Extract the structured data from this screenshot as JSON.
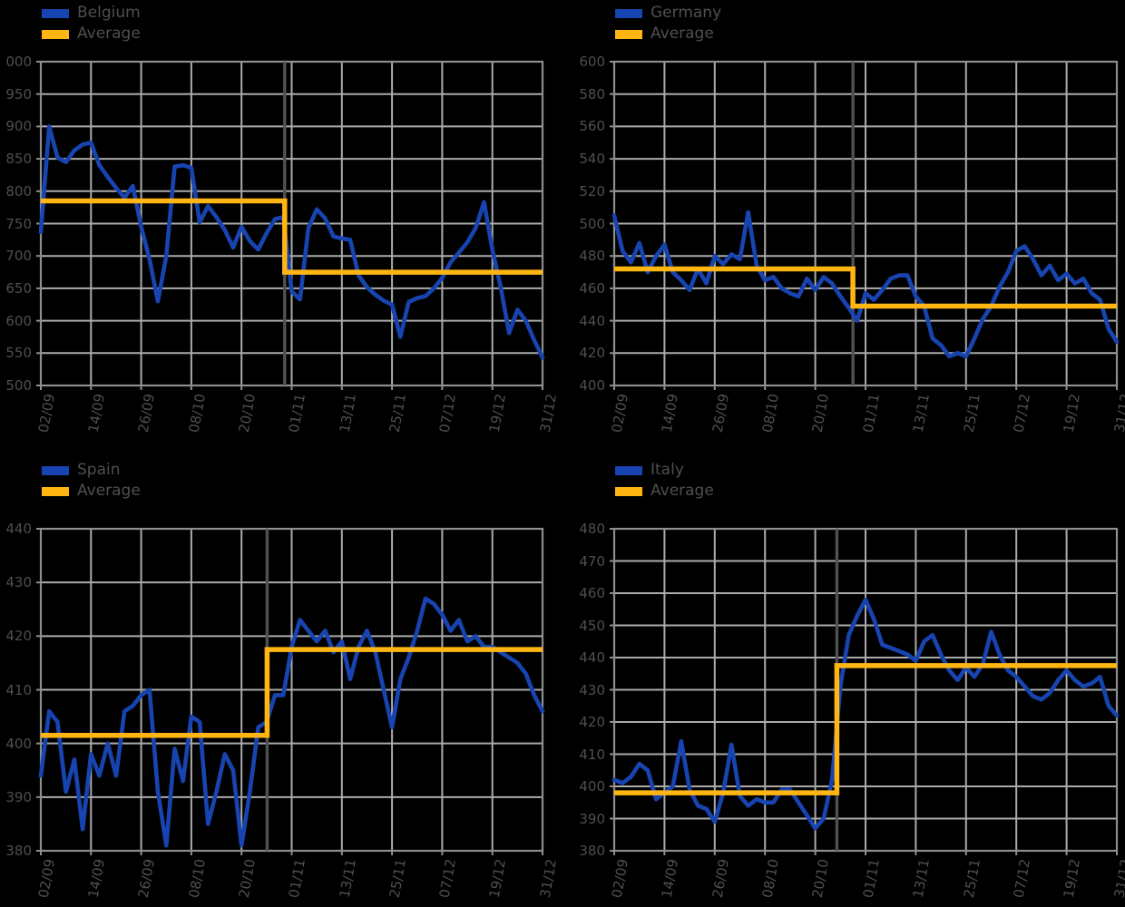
{
  "figure": {
    "background_color": "#000000",
    "text_color": "#4f4f4f",
    "grid_color": "#ababab",
    "spine_color": "#8e8e8e",
    "event_line_color": "#515151",
    "series_color": "#1744b0",
    "average_color": "#ffb612"
  },
  "chart_data": [
    {
      "type": "line",
      "title": "",
      "country": "Belgium",
      "legend_position": "upper-left-above",
      "grid": true,
      "ylim": [
        500,
        1000
      ],
      "y_step": 50,
      "y_tick_labels": [
        "1 000",
        "950",
        "900",
        "850",
        "800",
        "750",
        "700",
        "650",
        "600",
        "550",
        "500"
      ],
      "x_tick_labels": [
        "02/09",
        "14/09",
        "26/09",
        "08/10",
        "20/10",
        "01/11",
        "13/11",
        "25/11",
        "07/12",
        "19/12",
        "31/12"
      ],
      "event_line_x_fraction": 0.486,
      "series": [
        {
          "name": "Belgium",
          "color": "#1744b0",
          "values": [
            737,
            900,
            852,
            845,
            863,
            872,
            875,
            840,
            822,
            805,
            790,
            808,
            745,
            695,
            630,
            700,
            838,
            840,
            836,
            752,
            777,
            760,
            740,
            713,
            745,
            723,
            710,
            735,
            757,
            760,
            645,
            633,
            743,
            772,
            758,
            730,
            727,
            725,
            670,
            652,
            640,
            631,
            625,
            575,
            629,
            635,
            638,
            650,
            666,
            690,
            705,
            721,
            743,
            783,
            710,
            652,
            581,
            617,
            600,
            570,
            543
          ]
        },
        {
          "name": "Average",
          "color": "#ffb612",
          "type": "step",
          "before": 785,
          "after": 675,
          "change_at_fraction": 0.486
        }
      ]
    },
    {
      "type": "line",
      "title": "",
      "country": "Germany",
      "legend_position": "upper-left-above",
      "grid": true,
      "ylim": [
        400,
        600
      ],
      "y_step": 20,
      "y_tick_labels": [
        "600",
        "580",
        "560",
        "540",
        "520",
        "500",
        "480",
        "460",
        "440",
        "420",
        "400"
      ],
      "x_tick_labels": [
        "02/09",
        "14/09",
        "26/09",
        "08/10",
        "20/10",
        "01/11",
        "13/11",
        "25/11",
        "07/12",
        "19/12",
        "31/12"
      ],
      "event_line_x_fraction": 0.475,
      "series": [
        {
          "name": "Germany",
          "color": "#1744b0",
          "values": [
            505,
            483,
            476,
            488,
            470,
            480,
            487,
            470,
            465,
            459,
            472,
            463,
            480,
            475,
            481,
            478,
            507,
            474,
            465,
            467,
            460,
            457,
            455,
            466,
            459,
            467,
            463,
            455,
            448,
            440,
            457,
            453,
            459,
            466,
            468,
            468,
            455,
            449,
            429,
            425,
            418,
            420,
            418,
            429,
            441,
            449,
            461,
            470,
            483,
            486,
            478,
            468,
            474,
            465,
            469,
            463,
            466,
            457,
            453,
            435,
            427
          ]
        },
        {
          "name": "Average",
          "color": "#ffb612",
          "type": "step",
          "before": 472,
          "after": 449,
          "change_at_fraction": 0.475
        }
      ]
    },
    {
      "type": "line",
      "title": "",
      "country": "Spain",
      "legend_position": "upper-left-above",
      "grid": true,
      "ylim": [
        380,
        440
      ],
      "y_step": 10,
      "y_tick_labels": [
        "440",
        "430",
        "420",
        "410",
        "400",
        "390",
        "380"
      ],
      "x_tick_labels": [
        "02/09",
        "14/09",
        "26/09",
        "08/10",
        "20/10",
        "01/11",
        "13/11",
        "25/11",
        "07/12",
        "19/12",
        "31/12"
      ],
      "event_line_x_fraction": 0.451,
      "series": [
        {
          "name": "Spain",
          "color": "#1744b0",
          "values": [
            394,
            406,
            404,
            391,
            397,
            384,
            398,
            394,
            400,
            394,
            406,
            407,
            409,
            410,
            391,
            381,
            399,
            393,
            405,
            404,
            385,
            391,
            398,
            395,
            381,
            391,
            403,
            404,
            409,
            409,
            418,
            423,
            421,
            419,
            421,
            417,
            419,
            412,
            418,
            421,
            417,
            410,
            403,
            412,
            416,
            421,
            427,
            426,
            424,
            421,
            423,
            419,
            420,
            418,
            418,
            417,
            416,
            415,
            413,
            409,
            406
          ]
        },
        {
          "name": "Average",
          "color": "#ffb612",
          "type": "step",
          "before": 401.5,
          "after": 417.5,
          "change_at_fraction": 0.451
        }
      ]
    },
    {
      "type": "line",
      "title": "",
      "country": "Italy",
      "legend_position": "upper-left-above",
      "grid": true,
      "ylim": [
        380,
        480
      ],
      "y_step": 10,
      "y_tick_labels": [
        "480",
        "470",
        "460",
        "450",
        "440",
        "430",
        "420",
        "410",
        "400",
        "390",
        "380"
      ],
      "x_tick_labels": [
        "02/09",
        "14/09",
        "26/09",
        "08/10",
        "20/10",
        "01/11",
        "13/11",
        "25/11",
        "07/12",
        "19/12",
        "31/12"
      ],
      "event_line_x_fraction": 0.443,
      "series": [
        {
          "name": "Italy",
          "color": "#1744b0",
          "values": [
            402,
            401,
            403,
            407,
            405,
            396,
            398,
            400,
            414,
            399,
            394,
            393,
            389,
            398,
            413,
            397,
            394,
            396,
            395,
            395,
            399,
            399,
            395,
            391,
            387,
            390,
            402,
            431,
            447,
            453,
            458,
            452,
            444,
            443,
            442,
            441,
            439,
            445,
            447,
            441,
            436,
            433,
            437,
            434,
            438,
            448,
            441,
            436,
            434,
            431,
            428,
            427,
            429,
            433,
            436,
            433,
            431,
            432,
            434,
            425,
            422
          ]
        },
        {
          "name": "Average",
          "color": "#ffb612",
          "type": "step",
          "before": 398,
          "after": 437.5,
          "change_at_fraction": 0.443
        }
      ]
    }
  ]
}
